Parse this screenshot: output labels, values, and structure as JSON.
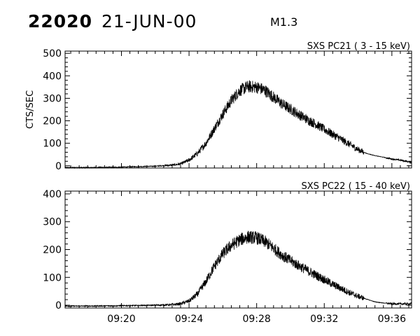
{
  "header": {
    "event_id": "22020",
    "date": "21-JUN-00",
    "flare_class": "M1.3"
  },
  "chart_data": [
    {
      "type": "line",
      "title": "SXS PC21  (  3 - 15 keV)",
      "ylabel": "CTS/SEC",
      "xlabel": "",
      "x_unit": "minutes (HH:MM)",
      "xlim": [
        "09:16:40",
        "09:37:10"
      ],
      "ylim": [
        -10,
        510
      ],
      "yticks": [
        0,
        100,
        200,
        300,
        400,
        500
      ],
      "xticks": [
        "09:20",
        "09:24",
        "09:28",
        "09:32",
        "09:36"
      ],
      "grid": false,
      "series": [
        {
          "x": [
            "09:16:40",
            "09:18:00",
            "09:20:00",
            "09:21:00",
            "09:22:00",
            "09:23:00",
            "09:23:30",
            "09:24:00",
            "09:24:30",
            "09:25:00",
            "09:25:30",
            "09:26:00",
            "09:26:30",
            "09:27:00",
            "09:27:30",
            "09:28:00",
            "09:28:30",
            "09:29:00",
            "09:29:30",
            "09:30:00",
            "09:30:30",
            "09:31:00",
            "09:31:30",
            "09:32:00",
            "09:32:30",
            "09:33:00",
            "09:33:30",
            "09:34:00",
            "09:34:30",
            "09:35:00",
            "09:35:30",
            "09:36:00",
            "09:36:30",
            "09:37:10"
          ],
          "y": [
            -8,
            -8,
            -6,
            -4,
            -2,
            3,
            8,
            25,
            55,
            100,
            165,
            230,
            290,
            335,
            352,
            350,
            335,
            305,
            275,
            252,
            228,
            205,
            185,
            162,
            140,
            118,
            95,
            72,
            55,
            45,
            38,
            30,
            25,
            15
          ]
        }
      ]
    },
    {
      "type": "line",
      "title": "SXS PC22  ( 15 - 40 keV)",
      "ylabel": "",
      "xlabel": "",
      "x_unit": "minutes (HH:MM)",
      "xlim": [
        "09:16:40",
        "09:37:10"
      ],
      "ylim": [
        -10,
        410
      ],
      "yticks": [
        0,
        100,
        200,
        300,
        400
      ],
      "xticks": [
        "09:20",
        "09:24",
        "09:28",
        "09:32",
        "09:36"
      ],
      "grid": false,
      "series": [
        {
          "x": [
            "09:16:40",
            "09:18:00",
            "09:20:00",
            "09:21:00",
            "09:22:00",
            "09:23:00",
            "09:23:30",
            "09:24:00",
            "09:24:30",
            "09:25:00",
            "09:25:30",
            "09:26:00",
            "09:26:30",
            "09:27:00",
            "09:27:30",
            "09:28:00",
            "09:28:30",
            "09:29:00",
            "09:29:30",
            "09:30:00",
            "09:30:30",
            "09:31:00",
            "09:31:30",
            "09:32:00",
            "09:32:30",
            "09:33:00",
            "09:33:30",
            "09:34:00",
            "09:34:30",
            "09:35:00",
            "09:35:30",
            "09:36:00",
            "09:36:30",
            "09:37:10"
          ],
          "y": [
            -3,
            -3,
            -2,
            -1,
            0,
            2,
            5,
            15,
            40,
            85,
            140,
            185,
            215,
            235,
            245,
            242,
            228,
            205,
            180,
            160,
            142,
            125,
            108,
            92,
            75,
            60,
            45,
            32,
            22,
            12,
            8,
            5,
            5,
            5
          ]
        }
      ]
    }
  ]
}
